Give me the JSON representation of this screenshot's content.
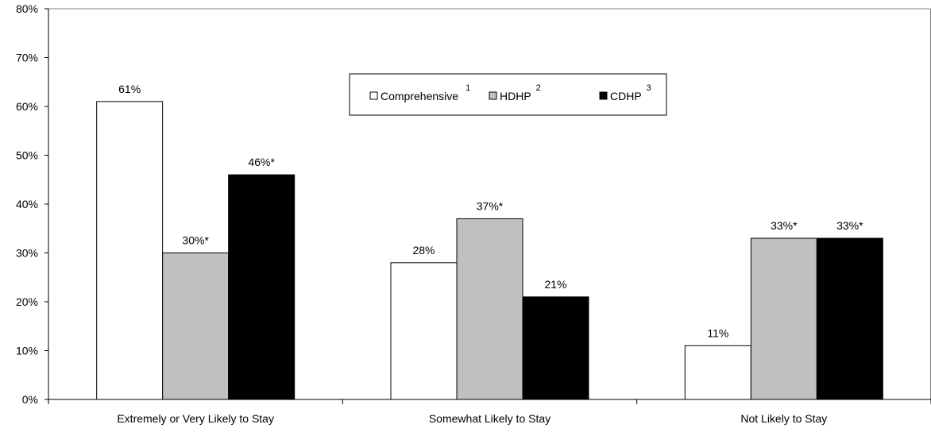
{
  "chart_data": {
    "type": "bar",
    "categories": [
      "Extremely or Very Likely to Stay",
      "Somewhat Likely to Stay",
      "Not Likely to Stay"
    ],
    "series": [
      {
        "name": "Comprehensive",
        "superscript": "1",
        "color": "#ffffff",
        "values": [
          61,
          28,
          11
        ],
        "labels": [
          "61%",
          "28%",
          "11%"
        ]
      },
      {
        "name": "HDHP",
        "superscript": "2",
        "color": "#c0c0c0",
        "values": [
          30,
          37,
          33
        ],
        "labels": [
          "30%*",
          "37%*",
          "33%*"
        ]
      },
      {
        "name": "CDHP",
        "superscript": "3",
        "color": "#000000",
        "values": [
          46,
          21,
          33
        ],
        "labels": [
          "46%*",
          "21%",
          "33%*"
        ]
      }
    ],
    "ylim": [
      0,
      80
    ],
    "yticks": [
      "0%",
      "10%",
      "20%",
      "30%",
      "40%",
      "50%",
      "60%",
      "70%",
      "80%"
    ],
    "grid": false,
    "legend_position": "top-center",
    "title": "",
    "xlabel": "",
    "ylabel": ""
  }
}
